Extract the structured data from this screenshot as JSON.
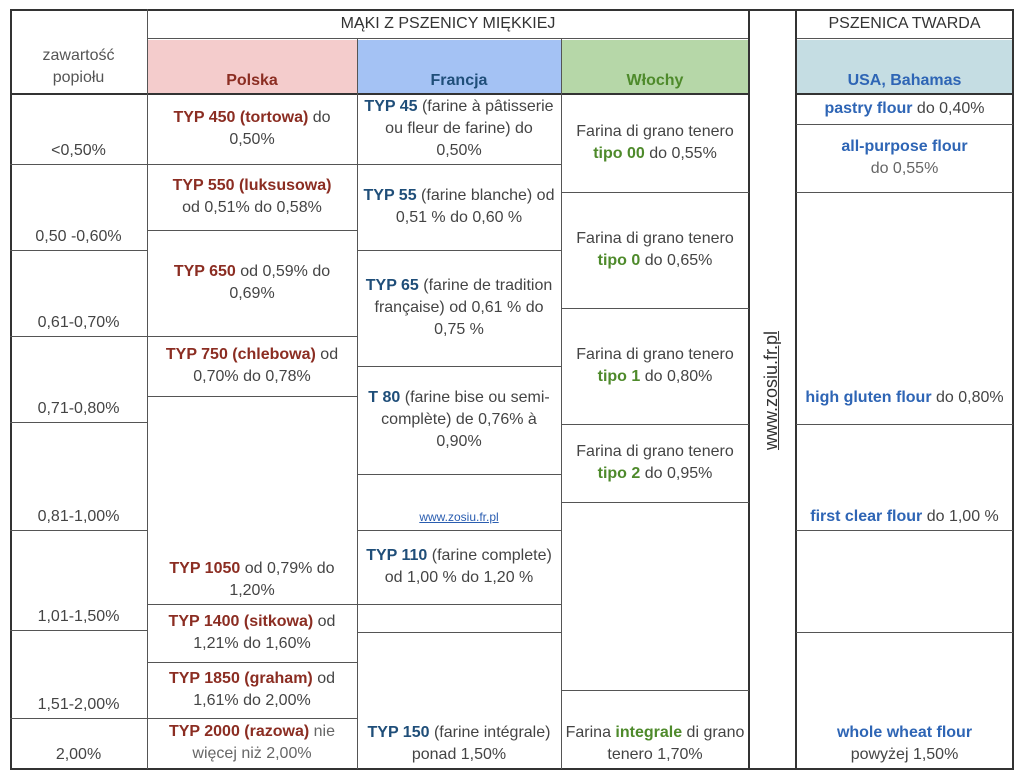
{
  "header": {
    "title_soft": "MĄKI Z PSZENICY MIĘKKIEJ",
    "title_durum": "PSZENICA TWARDA",
    "ash_label": "zawartość popiołu",
    "col_pl": "Polska",
    "col_fr": "Francja",
    "col_it": "Włochy",
    "col_us": "USA, Bahamas"
  },
  "site": "www.zosiu.fr.pl",
  "ash_ranges": [
    "<0,50%",
    "0,50 -0,60%",
    "0,61-0,70%",
    "0,71-0,80%",
    "0,81-1,00%",
    "1,01-1,50%",
    "1,51-2,00%",
    "2,00%"
  ],
  "polska": [
    {
      "name": "TYP 450 (tortowa)",
      "desc": " do 0,50%"
    },
    {
      "name": "TYP 550 (luksusowa)",
      "desc": "od 0,51% do 0,58%"
    },
    {
      "name": "TYP 650",
      "desc": " od 0,59% do 0,69%"
    },
    {
      "name": "TYP 750 (chlebowa)",
      "desc": "  od 0,70% do 0,78%"
    },
    {
      "name": "TYP 1050",
      "desc": " od 0,79% do 1,20%"
    },
    {
      "name": "TYP 1400 (sitkowa)",
      "desc": " od 1,21% do 1,60%"
    },
    {
      "name": "TYP 1850 (graham)",
      "desc": " od 1,61% do 2,00%"
    },
    {
      "name": "TYP 2000 (razowa)",
      "desc": " nie więcej niż 2,00%"
    }
  ],
  "francja": [
    {
      "name": "TYP 45",
      "desc": " (farine à pâtisserie ou fleur de farine) do 0,50%"
    },
    {
      "name": "TYP 55",
      "desc": " (farine blanche) od 0,51 % do 0,60 %"
    },
    {
      "name": "TYP 65",
      "desc": " (farine de tradition française) od 0,61 % do 0,75 %"
    },
    {
      "name": "T 80",
      "desc": " (farine bise ou semi-complète) de 0,76% à 0,90%"
    },
    {
      "name": "TYP 110",
      "desc": " (farine complete) od 1,00 % do 1,20 %"
    },
    {
      "name": "TYP 150",
      "desc": " (farine intégrale) ponad 1,50%"
    }
  ],
  "wlochy": [
    {
      "pre": "Farina di grano tenero ",
      "name": "tipo 00",
      "post": " do 0,55%"
    },
    {
      "pre": "Farina di grano tenero ",
      "name": "tipo 0",
      "post": " do 0,65%"
    },
    {
      "pre": "Farina di grano tenero ",
      "name": "tipo 1",
      "post": " do 0,80%"
    },
    {
      "pre": "Farina di grano tenero ",
      "name": "tipo 2",
      "post": " do 0,95%"
    },
    {
      "pre": "Farina ",
      "name": "integrale",
      "post": " di grano tenero 1,70%"
    }
  ],
  "usa": [
    {
      "name": "pastry flour",
      "desc": " do 0,40%"
    },
    {
      "name": "all-purpose flour",
      "desc": "do 0,55%"
    },
    {
      "name": "high gluten flour",
      "desc": " do 0,80%"
    },
    {
      "name": "first clear flour",
      "desc": " do 1,00 %"
    },
    {
      "name": "whole wheat flour",
      "desc": "powyżej 1,50%"
    }
  ]
}
